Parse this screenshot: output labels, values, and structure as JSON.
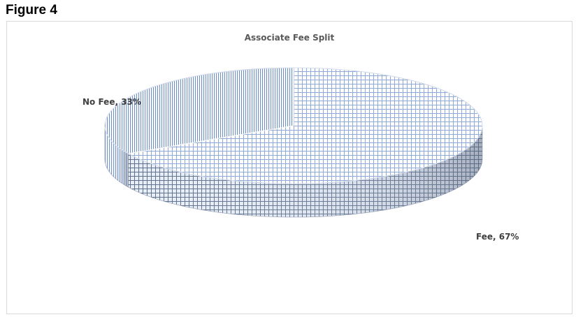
{
  "figure_label": "Figure 4",
  "chart_data": {
    "type": "pie",
    "title": "Associate Fee Split",
    "categories": [
      "Fee",
      "No Fee"
    ],
    "values": [
      67,
      33
    ],
    "unit": "%",
    "data_labels": [
      "Fee, 67%",
      "No Fee, 33%"
    ],
    "style": "3d",
    "legend": "none",
    "colors": {
      "Fee": "#7f9ecf",
      "No Fee": "#5b7fb8"
    }
  }
}
